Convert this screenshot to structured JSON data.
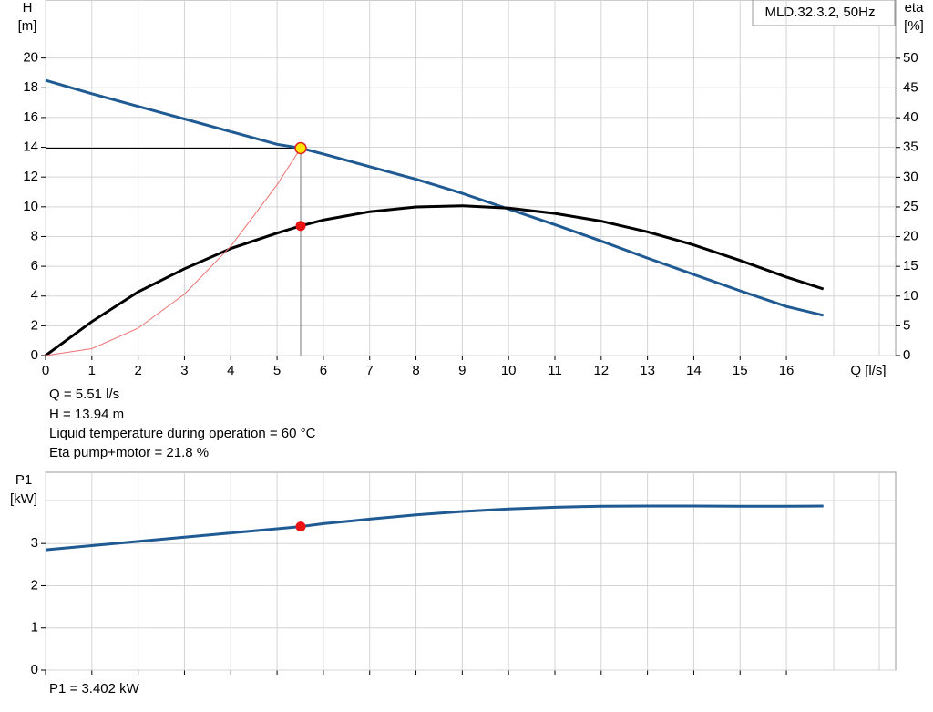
{
  "chart_data": [
    {
      "type": "line",
      "legend": "MLD.32.3.2, 50Hz",
      "y_label": [
        "H",
        "[m]"
      ],
      "y2_label": [
        "eta",
        "[%]"
      ],
      "x_label": "Q [l/s]",
      "x": [
        0,
        1,
        2,
        3,
        4,
        5,
        5.51,
        6,
        7,
        8,
        9,
        10,
        11,
        12,
        13,
        14,
        15,
        16,
        16.8
      ],
      "series": [
        {
          "color": "#1f5a93",
          "values": [
            18.5,
            17.6,
            16.75,
            15.9,
            15.05,
            14.2,
            13.94,
            13.55,
            12.7,
            11.85,
            10.9,
            9.85,
            8.8,
            7.7,
            6.55,
            5.45,
            4.35,
            3.3,
            2.7
          ]
        },
        {
          "color": "#000000",
          "axis": "y2",
          "values": [
            0,
            5.7,
            10.7,
            14.6,
            18,
            20.6,
            21.8,
            22.8,
            24.2,
            25,
            25.2,
            24.8,
            23.9,
            22.6,
            20.8,
            18.6,
            16,
            13.2,
            11.2
          ]
        },
        {
          "color": "#f07070",
          "values": [
            0,
            0.46,
            1.84,
            4.13,
            7.35,
            11.48,
            13.94,
            null,
            null,
            null,
            null,
            null,
            null,
            null,
            null,
            null,
            null,
            null,
            null
          ]
        }
      ],
      "operating_point": {
        "x": 5.51,
        "y": 13.94,
        "eta": 21.8
      },
      "xlim": [
        0,
        18.36
      ],
      "xticks": [
        0,
        1,
        2,
        3,
        4,
        5,
        6,
        7,
        8,
        9,
        10,
        11,
        12,
        13,
        14,
        15,
        16
      ],
      "ylim": [
        0,
        23.9
      ],
      "yticks": [
        0,
        2,
        4,
        6,
        8,
        10,
        12,
        14,
        16,
        18,
        20
      ],
      "y2lim": [
        0,
        59.8
      ],
      "y2ticks": [
        0,
        5,
        10,
        15,
        20,
        25,
        30,
        35,
        40,
        45,
        50
      ],
      "grid": true,
      "annotations": [
        "Q = 5.51 l/s",
        "H = 13.94 m",
        "Liquid temperature during operation = 60 °C",
        "Eta pump+motor = 21.8 %"
      ]
    },
    {
      "type": "line",
      "y_label": [
        "P1",
        "[kW]"
      ],
      "x": [
        0,
        1,
        2,
        3,
        4,
        5,
        5.51,
        6,
        7,
        8,
        9,
        10,
        11,
        12,
        13,
        14,
        15,
        16,
        16.8
      ],
      "series": [
        {
          "color": "#1f5a93",
          "values": [
            2.85,
            2.95,
            3.05,
            3.15,
            3.25,
            3.35,
            3.402,
            3.47,
            3.58,
            3.68,
            3.76,
            3.82,
            3.86,
            3.885,
            3.89,
            3.89,
            3.885,
            3.885,
            3.89
          ]
        }
      ],
      "operating_point": {
        "x": 5.51,
        "y": 3.402
      },
      "xlim": [
        0,
        18.36
      ],
      "xticks": [
        0,
        1,
        2,
        3,
        4,
        5,
        6,
        7,
        8,
        9,
        10,
        11,
        12,
        13,
        14,
        15,
        16
      ],
      "ylim": [
        0,
        4.69
      ],
      "yticks": [
        0,
        1,
        2,
        3
      ],
      "grid": true,
      "annotations": [
        "P1 = 3.402 kW"
      ]
    }
  ]
}
